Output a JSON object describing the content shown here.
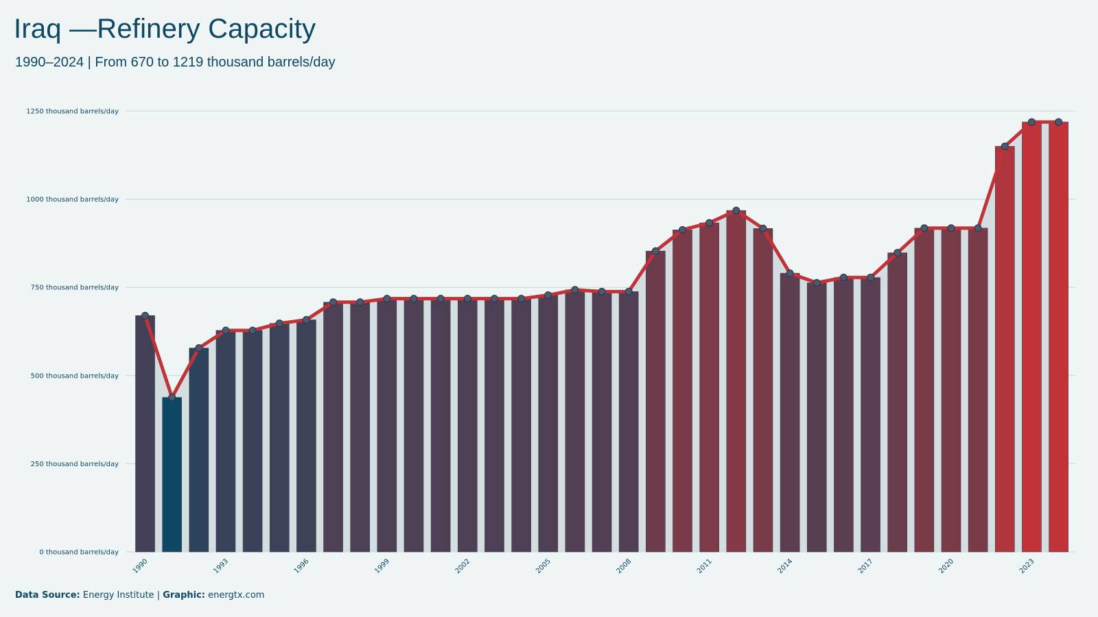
{
  "header": {
    "title": "Iraq —Refinery Capacity",
    "subtitle": "1990–2024 | From 670 to 1219 thousand barrels/day"
  },
  "footer": {
    "source_label": "Data Source:",
    "source_value": "Energy Institute",
    "separator": "|",
    "graphic_label": "Graphic:",
    "graphic_value": "energtx.com"
  },
  "colors": {
    "background": "#eff5f5",
    "text": "#0d4763",
    "low": "#0d4763",
    "high": "#bf3339",
    "line": "#bf3339",
    "point": "#4a5a70",
    "grid": "#c8d3d6",
    "area": "#d4dde0"
  },
  "chart_data": {
    "type": "bar",
    "title": "Iraq —Refinery Capacity",
    "subtitle": "1990–2024 | From 670 to 1219 thousand barrels/day",
    "xlabel": "",
    "ylabel": "",
    "unit": "thousand barrels/day",
    "ylim": [
      0,
      1250
    ],
    "yticks": [
      0,
      250,
      500,
      750,
      1000,
      1250
    ],
    "ytick_labels": [
      "0 thousand barrels/day",
      "250 thousand barrels/day",
      "500 thousand barrels/day",
      "750 thousand barrels/day",
      "1000 thousand barrels/day",
      "1250 thousand barrels/day"
    ],
    "xtick_labels": [
      "1990",
      "1993",
      "1996",
      "1999",
      "2002",
      "2005",
      "2008",
      "2011",
      "2014",
      "2017",
      "2020",
      "2023"
    ],
    "grid": true,
    "legend": "none",
    "overlay": "line with markers",
    "categories": [
      1990,
      1991,
      1992,
      1993,
      1994,
      1995,
      1996,
      1997,
      1998,
      1999,
      2000,
      2001,
      2002,
      2003,
      2004,
      2005,
      2006,
      2007,
      2008,
      2009,
      2010,
      2011,
      2012,
      2013,
      2014,
      2015,
      2016,
      2017,
      2018,
      2019,
      2020,
      2021,
      2022,
      2023,
      2024
    ],
    "values": [
      670,
      438,
      578,
      628,
      628,
      648,
      658,
      708,
      708,
      718,
      718,
      718,
      718,
      718,
      718,
      728,
      743,
      738,
      738,
      853,
      913,
      933,
      968,
      917,
      790,
      763,
      778,
      778,
      848,
      918,
      918,
      918,
      1150,
      1219,
      1219
    ]
  }
}
